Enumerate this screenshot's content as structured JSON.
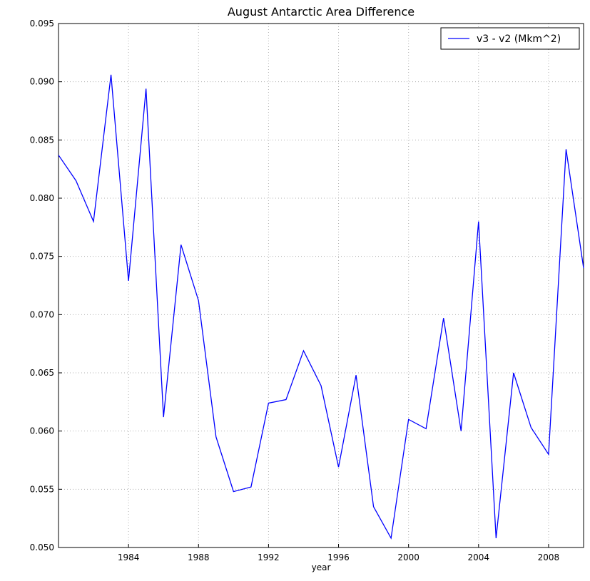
{
  "chart_data": {
    "type": "line",
    "title": "August Antarctic Area Difference",
    "x_label": "year",
    "x": [
      1980,
      1981,
      1982,
      1983,
      1984,
      1985,
      1986,
      1987,
      1988,
      1989,
      1990,
      1991,
      1992,
      1993,
      1994,
      1995,
      1996,
      1997,
      1998,
      1999,
      2000,
      2001,
      2002,
      2003,
      2004,
      2005,
      2006,
      2007,
      2008,
      2009,
      2010
    ],
    "series": [
      {
        "name": "v3 - v2 (Mkm^2)",
        "color": "#0000ff",
        "values": [
          0.0837,
          0.0815,
          0.078,
          0.0906,
          0.0729,
          0.0894,
          0.0612,
          0.076,
          0.0712,
          0.0595,
          0.0548,
          0.0552,
          0.0624,
          0.0627,
          0.0669,
          0.0639,
          0.0569,
          0.0648,
          0.0535,
          0.0508,
          0.061,
          0.0602,
          0.0697,
          0.06,
          0.078,
          0.0508,
          0.065,
          0.0603,
          0.058,
          0.0842,
          0.074
        ]
      }
    ],
    "xlim": [
      1980,
      2010
    ],
    "xticks": [
      1984,
      1988,
      1992,
      1996,
      2000,
      2004,
      2008
    ],
    "ylim": [
      0.05,
      0.095
    ],
    "yticks": [
      {
        "value": 0.05,
        "label": "0.050"
      },
      0.055,
      {
        "value": 0.06,
        "label": "0.060"
      },
      0.065,
      {
        "value": 0.07,
        "label": "0.070"
      },
      0.075,
      {
        "value": 0.08,
        "label": "0.080"
      },
      0.085,
      {
        "value": 0.09,
        "label": "0.090"
      },
      0.095
    ],
    "grid": true,
    "legend": "upper right"
  }
}
